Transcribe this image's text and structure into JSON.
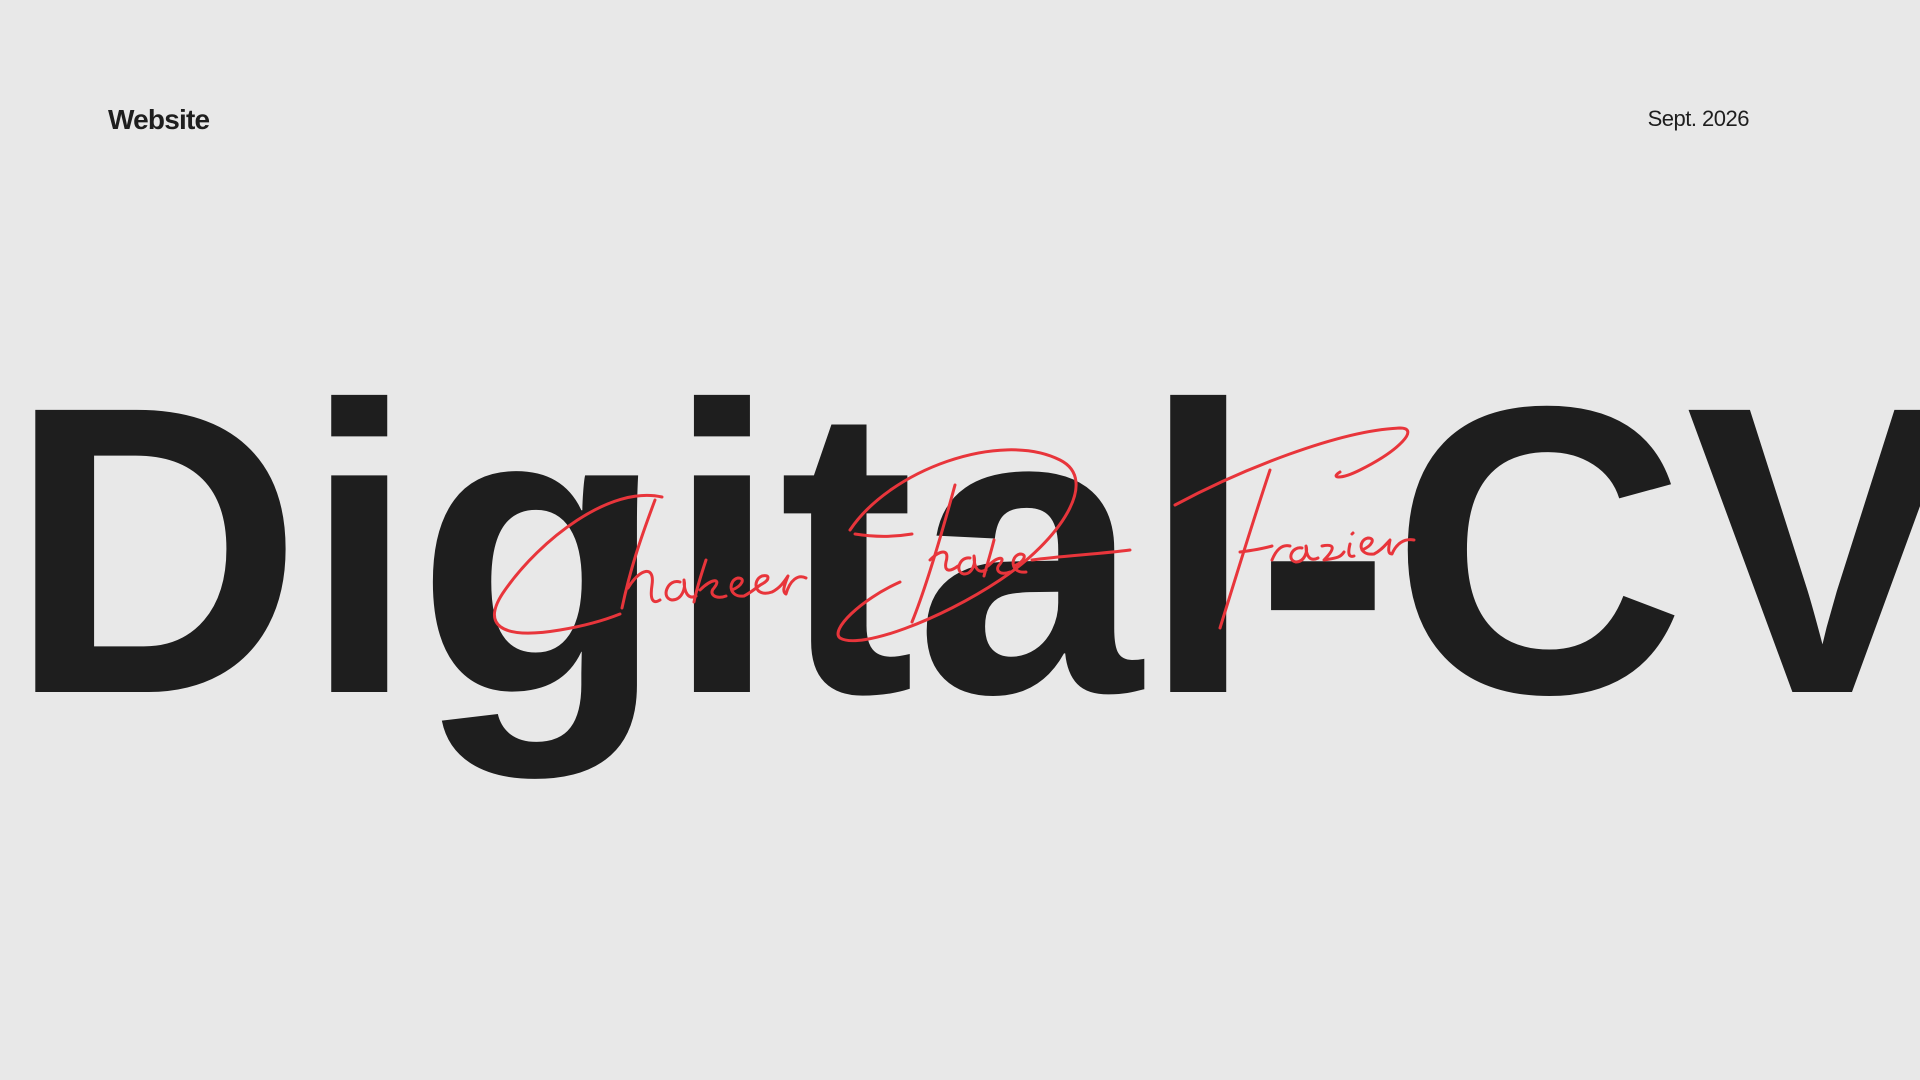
{
  "header": {
    "category": "Website",
    "date": "Sept. 2026"
  },
  "hero": {
    "title": "Digital-CV",
    "signature": "Chakeer Drake-Frazier"
  },
  "colors": {
    "background": "#e8e8e8",
    "text": "#1e1e1e",
    "signature": "#e8353b"
  }
}
